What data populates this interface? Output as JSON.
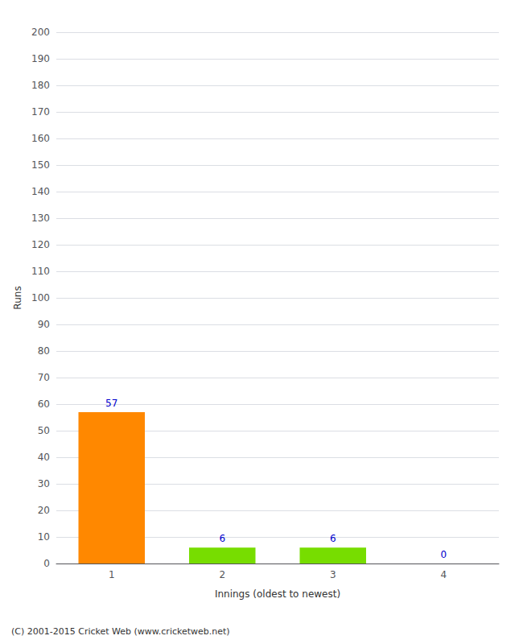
{
  "chart_data": {
    "type": "bar",
    "categories": [
      1,
      2,
      3,
      4
    ],
    "values": [
      57,
      6,
      6,
      0
    ],
    "colors": [
      "#FF8800",
      "#77DD00",
      "#77DD00",
      "#77DD00"
    ],
    "xlabel": "Innings (oldest to newest)",
    "ylabel": "Runs",
    "ylim": [
      0,
      200
    ],
    "yticks": [
      0,
      10,
      20,
      30,
      40,
      50,
      60,
      70,
      80,
      90,
      100,
      110,
      120,
      130,
      140,
      150,
      160,
      170,
      180,
      190,
      200
    ],
    "grid": true,
    "data_labels": true,
    "annotations": [
      "(C) 2001-2015 Cricket Web (www.cricketweb.net)"
    ]
  }
}
